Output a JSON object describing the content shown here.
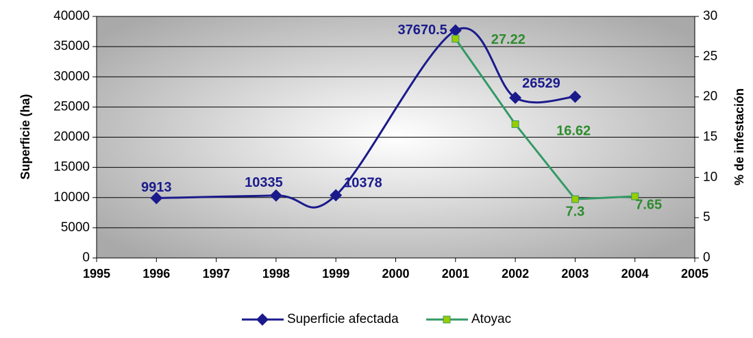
{
  "chart_data": {
    "type": "line",
    "xlim": [
      1995,
      2005
    ],
    "xticks": [
      1995,
      1996,
      1997,
      1998,
      1999,
      2000,
      2001,
      2002,
      2003,
      2004,
      2005
    ],
    "ylim": [
      0,
      40000
    ],
    "yticks": [
      0,
      5000,
      10000,
      15000,
      20000,
      25000,
      30000,
      35000,
      40000
    ],
    "y2lim": [
      0,
      30
    ],
    "y2ticks": [
      0,
      5,
      10,
      15,
      20,
      25,
      30
    ],
    "ylabel": "Superficie (ha)",
    "y2label": "% de infestación",
    "grid": true,
    "legend": "bottom",
    "series": [
      {
        "name": "Superficie afectada",
        "color": "#1a1a8c",
        "smooth": true,
        "x": [
          1996,
          1998,
          1999,
          2001,
          2002,
          2003
        ],
        "values": [
          9913,
          10335,
          10378,
          37670.5,
          26529,
          26700
        ],
        "value_labels": [
          "9913",
          "10335",
          "10378",
          "37670.5",
          "26529",
          null
        ]
      },
      {
        "name": "Atoyac",
        "color": "#339966",
        "axis": "y2",
        "marker_color": "#99cc00",
        "label_color": "#2e8b2e",
        "x": [
          2001,
          2002,
          2003,
          2004
        ],
        "values": [
          27.22,
          16.62,
          7.3,
          7.65
        ],
        "value_labels": [
          "27.22",
          "16.62",
          "7.3",
          "7.65"
        ]
      }
    ]
  }
}
